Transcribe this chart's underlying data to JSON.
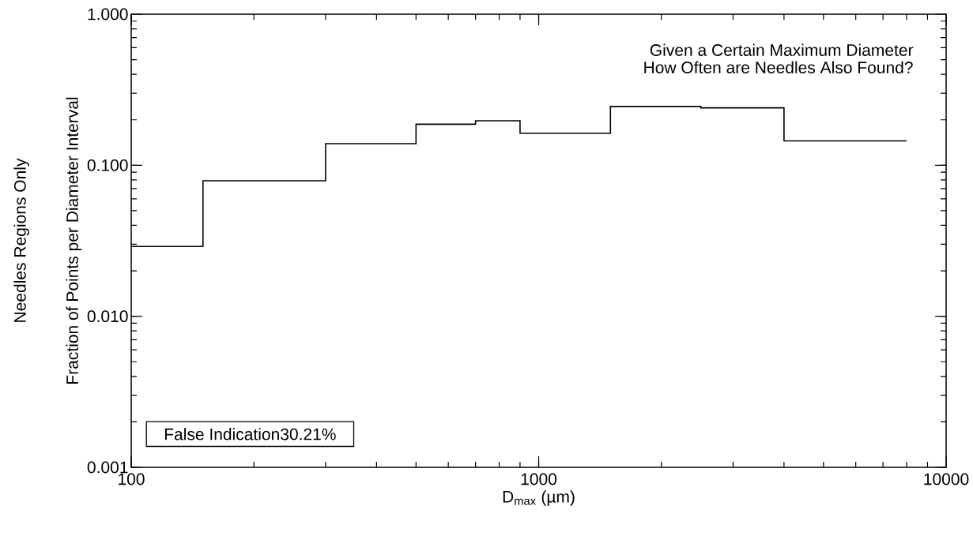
{
  "chart_data": {
    "type": "histogram",
    "bins": [
      100,
      150,
      300,
      500,
      700,
      900,
      1500,
      2500,
      4000,
      8000
    ],
    "values": [
      0.029,
      0.079,
      0.139,
      0.187,
      0.197,
      0.163,
      0.245,
      0.24,
      0.145
    ],
    "color": "#000000",
    "xlabel": "D$_{max}$ (µm)",
    "ylabel": "Fraction of Points per Diameter Interval",
    "xlim": [
      100,
      10000
    ],
    "ylim": [
      0.001,
      1
    ],
    "xticks": [
      100,
      1000,
      10000
    ],
    "yticks": [
      {
        "value": 0.001,
        "label": "0.001"
      },
      {
        "value": 0.01,
        "label": "0.010"
      },
      {
        "value": 0.1,
        "label": "0.100"
      },
      {
        "value": 1,
        "label": "1.000"
      }
    ],
    "log": "xy",
    "grid": false,
    "annotations": [
      "Given a Certain Maximum Diameter",
      "How Often are Needles Also Found?",
      "False Indication30.21%",
      "Needles Regions Only"
    ]
  }
}
